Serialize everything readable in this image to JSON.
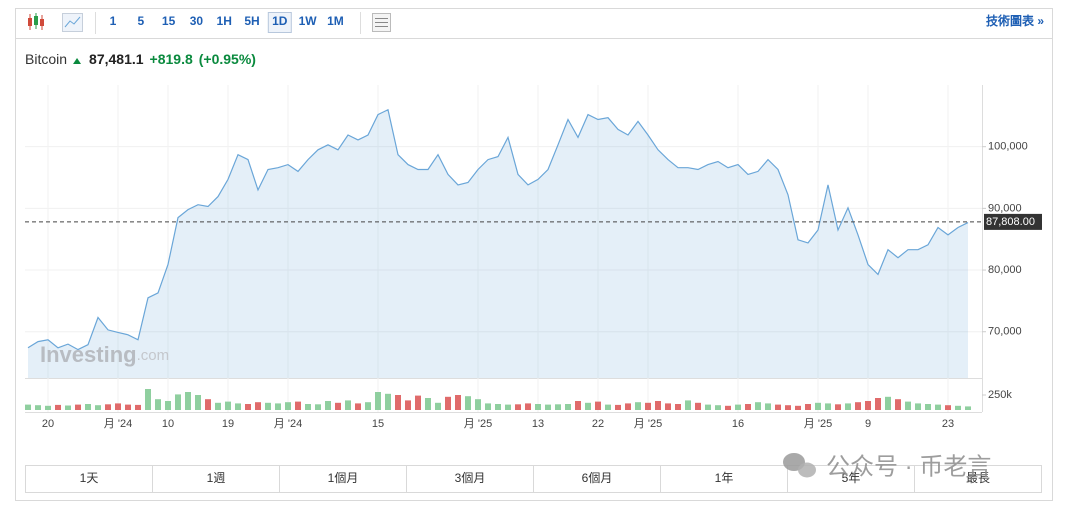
{
  "toolbar": {
    "intervals": [
      "1",
      "5",
      "15",
      "30",
      "1H",
      "5H",
      "1D",
      "1W",
      "1M"
    ],
    "right_link": "技術圖表 »"
  },
  "header": {
    "name": "Bitcoin",
    "price": "87,481.1",
    "change": "+819.8",
    "change_pct": "(+0.95%)"
  },
  "chart_data": {
    "type": "area",
    "categories": [
      null,
      null,
      "20",
      null,
      null,
      null,
      null,
      null,
      null,
      "月 '24",
      null,
      null,
      null,
      null,
      "10",
      null,
      null,
      null,
      null,
      null,
      "19",
      null,
      null,
      null,
      null,
      null,
      "月 '24",
      null,
      null,
      null,
      null,
      null,
      null,
      null,
      null,
      "15",
      null,
      null,
      null,
      null,
      null,
      null,
      null,
      null,
      null,
      "月 '25",
      null,
      null,
      null,
      null,
      null,
      "13",
      null,
      null,
      null,
      null,
      null,
      "22",
      null,
      null,
      null,
      null,
      "月 '25",
      null,
      null,
      null,
      null,
      null,
      null,
      null,
      null,
      "16",
      null,
      null,
      null,
      null,
      null,
      null,
      null,
      "月 '25",
      null,
      null,
      null,
      null,
      "9",
      null,
      null,
      null,
      null,
      null,
      null,
      null,
      "23",
      null,
      null
    ],
    "series": [
      {
        "color": "#6aa6d8",
        "values": [
          67400,
          68400,
          68700,
          67400,
          68000,
          67100,
          67900,
          72300,
          70300,
          69900,
          69500,
          68700,
          75500,
          76300,
          80900,
          88500,
          89800,
          90600,
          90300,
          91900,
          94700,
          98700,
          97900,
          93000,
          96300,
          96600,
          97100,
          96000,
          97900,
          99500,
          100300,
          99500,
          101900,
          101100,
          101900,
          105200,
          106000,
          98700,
          97100,
          96300,
          96300,
          98700,
          95500,
          93800,
          94200,
          96300,
          97900,
          98400,
          101500,
          95500,
          93800,
          94700,
          96300,
          100300,
          104400,
          101500,
          105200,
          104400,
          104700,
          102800,
          101900,
          104100,
          101900,
          99500,
          97900,
          96600,
          96600,
          96300,
          97100,
          97600,
          96600,
          97100,
          95500,
          96000,
          97900,
          96300,
          92200,
          84900,
          84400,
          86500,
          93800,
          86500,
          90100,
          85700,
          80900,
          79300,
          83300,
          82000,
          83300,
          83300,
          84100,
          86900,
          85700,
          86900,
          87700
        ]
      },
      {
        "axis": "y2",
        "up_color": "#8fcf9f",
        "down_color": "#e06b6b",
        "values": [
          90000,
          80000,
          70000,
          85000,
          75000,
          90000,
          100000,
          80000,
          95000,
          110000,
          90000,
          85000,
          350000,
          180000,
          150000,
          260000,
          300000,
          250000,
          180000,
          120000,
          140000,
          110000,
          100000,
          130000,
          120000,
          110000,
          130000,
          140000,
          100000,
          95000,
          150000,
          120000,
          160000,
          110000,
          130000,
          300000,
          270000,
          250000,
          160000,
          240000,
          200000,
          120000,
          220000,
          250000,
          230000,
          180000,
          110000,
          100000,
          90000,
          95000,
          110000,
          100000,
          90000,
          95000,
          100000,
          150000,
          120000,
          140000,
          90000,
          85000,
          110000,
          130000,
          120000,
          150000,
          110000,
          100000,
          160000,
          120000,
          90000,
          80000,
          70000,
          90000,
          100000,
          130000,
          110000,
          90000,
          80000,
          70000,
          100000,
          120000,
          110000,
          95000,
          110000,
          130000,
          150000,
          200000,
          220000,
          180000,
          140000,
          110000,
          100000,
          90000,
          80000,
          70000,
          60000
        ]
      }
    ],
    "ylim": [
      62500,
      110000
    ],
    "yticks": [
      {
        "value": 70000,
        "label": "70,000"
      },
      {
        "value": 80000,
        "label": "80,000"
      },
      {
        "value": 90000,
        "label": "90,000"
      },
      {
        "value": 100000,
        "label": "100,000"
      }
    ],
    "y2lim": [
      0,
      500000
    ],
    "y2ticks": [
      {
        "value": 250000,
        "label": "250k"
      }
    ],
    "current_price": {
      "value": 87808,
      "label": "87,808.00"
    },
    "grid": true
  },
  "range_buttons": [
    "1天",
    "1週",
    "1個月",
    "3個月",
    "6個月",
    "1年",
    "5年",
    "最長"
  ],
  "logo": {
    "main": "Investing",
    "suffix": ".com"
  },
  "watermark": "公众号 · 币老言"
}
